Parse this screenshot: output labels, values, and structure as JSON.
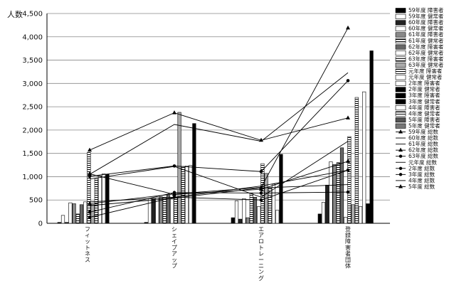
{
  "chart_data": {
    "type": "bar",
    "ylabel": "人数",
    "ylim": [
      0,
      4500
    ],
    "yticks": [
      "0",
      "500",
      "1,000",
      "1,500",
      "2,000",
      "2,500",
      "3,000",
      "3,500",
      "4,000",
      "4,500"
    ],
    "categories": [
      "フィットネス",
      "シェイプアップ",
      "エアロトレーニング",
      "登録障害者団体"
    ],
    "grid": true,
    "legend_position": "right",
    "bar_series": [
      {
        "name": "59年度 障害者",
        "fill": "#000000",
        "values": [
          20,
          20,
          120,
          200
        ]
      },
      {
        "name": "59年度 健常者",
        "fill": "#ffffff",
        "values": [
          170,
          530,
          480,
          450
        ]
      },
      {
        "name": "60年度 障害者",
        "fill": "#222222",
        "values": [
          20,
          520,
          90,
          820
        ]
      },
      {
        "name": "60年度 健常者",
        "fill": "#ffffff",
        "values": [
          440,
          540,
          530,
          1320
        ]
      },
      {
        "name": "61年度 障害者",
        "fill": "#888888",
        "values": [
          420,
          570,
          120,
          1260
        ]
      },
      {
        "name": "61年度 健常者",
        "fill": "hatch",
        "values": [
          200,
          560,
          650,
          1300
        ]
      },
      {
        "name": "62年度 障害者",
        "fill": "#666666",
        "values": [
          400,
          600,
          560,
          1620
        ]
      },
      {
        "name": "62年度 健常者",
        "fill": "#ffffff",
        "values": [
          460,
          520,
          360,
          130
        ]
      },
      {
        "name": "63年度 障害者",
        "fill": "hatch",
        "values": [
          1520,
          540,
          1280,
          1860
        ]
      },
      {
        "name": "63年度 健常者",
        "fill": "#aaaaaa",
        "values": [
          400,
          2380,
          1070,
          400
        ]
      },
      {
        "name": "元年度 障害者",
        "fill": "hatch",
        "values": [
          960,
          1220,
          760,
          2700
        ]
      },
      {
        "name": "元年度 健常者",
        "fill": "#ffffff",
        "values": [
          1020,
          1230,
          840,
          360
        ]
      },
      {
        "name": "2年度 障害者",
        "fill": "#ffffff",
        "values": [
          1060,
          1240,
          280,
          2820
        ]
      },
      {
        "name": "2年度 健常者",
        "fill": "#000000",
        "values": [
          1050,
          2140,
          1480,
          420
        ]
      },
      {
        "name": "3年度 障害者",
        "fill": "#000000",
        "values": [
          0,
          0,
          0,
          3700
        ]
      },
      {
        "name": "3年度 健常者",
        "fill": "#000000",
        "values": [
          0,
          0,
          0,
          0
        ]
      },
      {
        "name": "4年度 障害者",
        "fill": "#ffffff",
        "values": [
          0,
          0,
          0,
          0
        ]
      },
      {
        "name": "4年度 健常者",
        "fill": "hatch",
        "values": [
          0,
          0,
          0,
          0
        ]
      },
      {
        "name": "5年度 障害者",
        "fill": "#555555",
        "values": [
          0,
          0,
          0,
          0
        ]
      },
      {
        "name": "5年度 健常者",
        "fill": "#777777",
        "values": [
          0,
          0,
          0,
          0
        ]
      }
    ],
    "line_series": [
      {
        "name": "59年度 総数",
        "marker": "triangle",
        "values": [
          1570,
          2370,
          1780,
          2260
        ]
      },
      {
        "name": "60年度 総数",
        "marker": "none",
        "values": [
          1050,
          2120,
          1760,
          3230
        ]
      },
      {
        "name": "61年度 総数",
        "marker": "none",
        "values": [
          950,
          1220,
          560,
          1760
        ]
      },
      {
        "name": "62年度 総数",
        "marker": "triangle",
        "values": [
          1060,
          620,
          730,
          1330
        ]
      },
      {
        "name": "63年度 総数",
        "marker": "circle",
        "values": [
          1010,
          1230,
          1110,
          3060
        ]
      },
      {
        "name": "元年度 総数",
        "marker": "none",
        "values": [
          460,
          560,
          800,
          1140
        ]
      },
      {
        "name": "2年度 総数",
        "marker": "circle",
        "values": [
          240,
          660,
          650,
          670
        ]
      },
      {
        "name": "3年度 総数",
        "marker": "circle",
        "values": [
          130,
          560,
          500,
          1140
        ]
      },
      {
        "name": "4年度 総数",
        "marker": "none",
        "values": [
          380,
          540,
          760,
          830
        ]
      },
      {
        "name": "5年度 総数",
        "marker": "triangle",
        "values": [
          420,
          630,
          770,
          4190
        ]
      }
    ]
  }
}
